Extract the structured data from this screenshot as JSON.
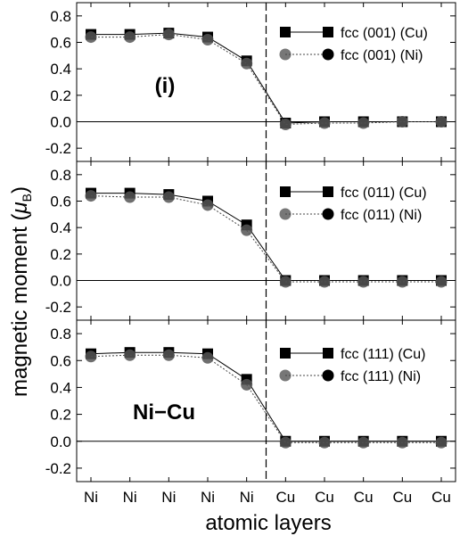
{
  "figure": {
    "ylabel_main": "magnetic moment (",
    "ylabel_mu": "μ",
    "ylabel_sub": "B",
    "ylabel_close": ")",
    "xlabel": "atomic layers"
  },
  "chart_data": [
    {
      "type": "line",
      "panel_label": "(i)",
      "categories": [
        "Ni",
        "Ni",
        "Ni",
        "Ni",
        "Ni",
        "Cu",
        "Cu",
        "Cu",
        "Cu",
        "Cu"
      ],
      "ylim": [
        -0.3,
        0.9
      ],
      "yticks": [
        -0.2,
        0.0,
        0.2,
        0.4,
        0.6,
        0.8
      ],
      "interface_after_index": 4,
      "legend_position": "top-right",
      "series": [
        {
          "name": "fcc (001) (Cu)",
          "marker": "square",
          "color": "#000000",
          "values": [
            0.66,
            0.66,
            0.67,
            0.64,
            0.46,
            -0.01,
            0.0,
            0.0,
            0.0,
            0.0
          ]
        },
        {
          "name": "fcc (001) (Ni)",
          "marker": "circle",
          "color": "#000000",
          "values": [
            0.64,
            0.64,
            0.66,
            0.62,
            0.44,
            -0.02,
            -0.01,
            -0.01,
            0.0,
            0.0
          ]
        }
      ]
    },
    {
      "type": "line",
      "panel_label": "",
      "categories": [
        "Ni",
        "Ni",
        "Ni",
        "Ni",
        "Ni",
        "Cu",
        "Cu",
        "Cu",
        "Cu",
        "Cu"
      ],
      "ylim": [
        -0.3,
        0.9
      ],
      "yticks": [
        -0.2,
        0.0,
        0.2,
        0.4,
        0.6,
        0.8
      ],
      "interface_after_index": 4,
      "legend_position": "top-right",
      "series": [
        {
          "name": "fcc (011) (Cu)",
          "marker": "square",
          "color": "#000000",
          "values": [
            0.66,
            0.66,
            0.65,
            0.6,
            0.42,
            0.0,
            0.0,
            0.0,
            0.0,
            0.0
          ]
        },
        {
          "name": "fcc (011) (Ni)",
          "marker": "circle",
          "color": "#000000",
          "values": [
            0.64,
            0.63,
            0.63,
            0.57,
            0.38,
            -0.01,
            -0.01,
            -0.01,
            -0.01,
            -0.01
          ]
        }
      ]
    },
    {
      "type": "line",
      "panel_label": "Ni−Cu",
      "categories": [
        "Ni",
        "Ni",
        "Ni",
        "Ni",
        "Ni",
        "Cu",
        "Cu",
        "Cu",
        "Cu",
        "Cu"
      ],
      "ylim": [
        -0.3,
        0.9
      ],
      "yticks": [
        -0.2,
        0.0,
        0.2,
        0.4,
        0.6,
        0.8
      ],
      "interface_after_index": 4,
      "legend_position": "top-right",
      "series": [
        {
          "name": "fcc (111) (Cu)",
          "marker": "square",
          "color": "#000000",
          "values": [
            0.65,
            0.66,
            0.66,
            0.65,
            0.46,
            0.0,
            0.0,
            0.0,
            0.0,
            0.0
          ]
        },
        {
          "name": "fcc (111) (Ni)",
          "marker": "circle",
          "color": "#000000",
          "values": [
            0.63,
            0.64,
            0.64,
            0.62,
            0.42,
            -0.01,
            -0.01,
            -0.01,
            -0.01,
            -0.01
          ]
        }
      ]
    }
  ]
}
